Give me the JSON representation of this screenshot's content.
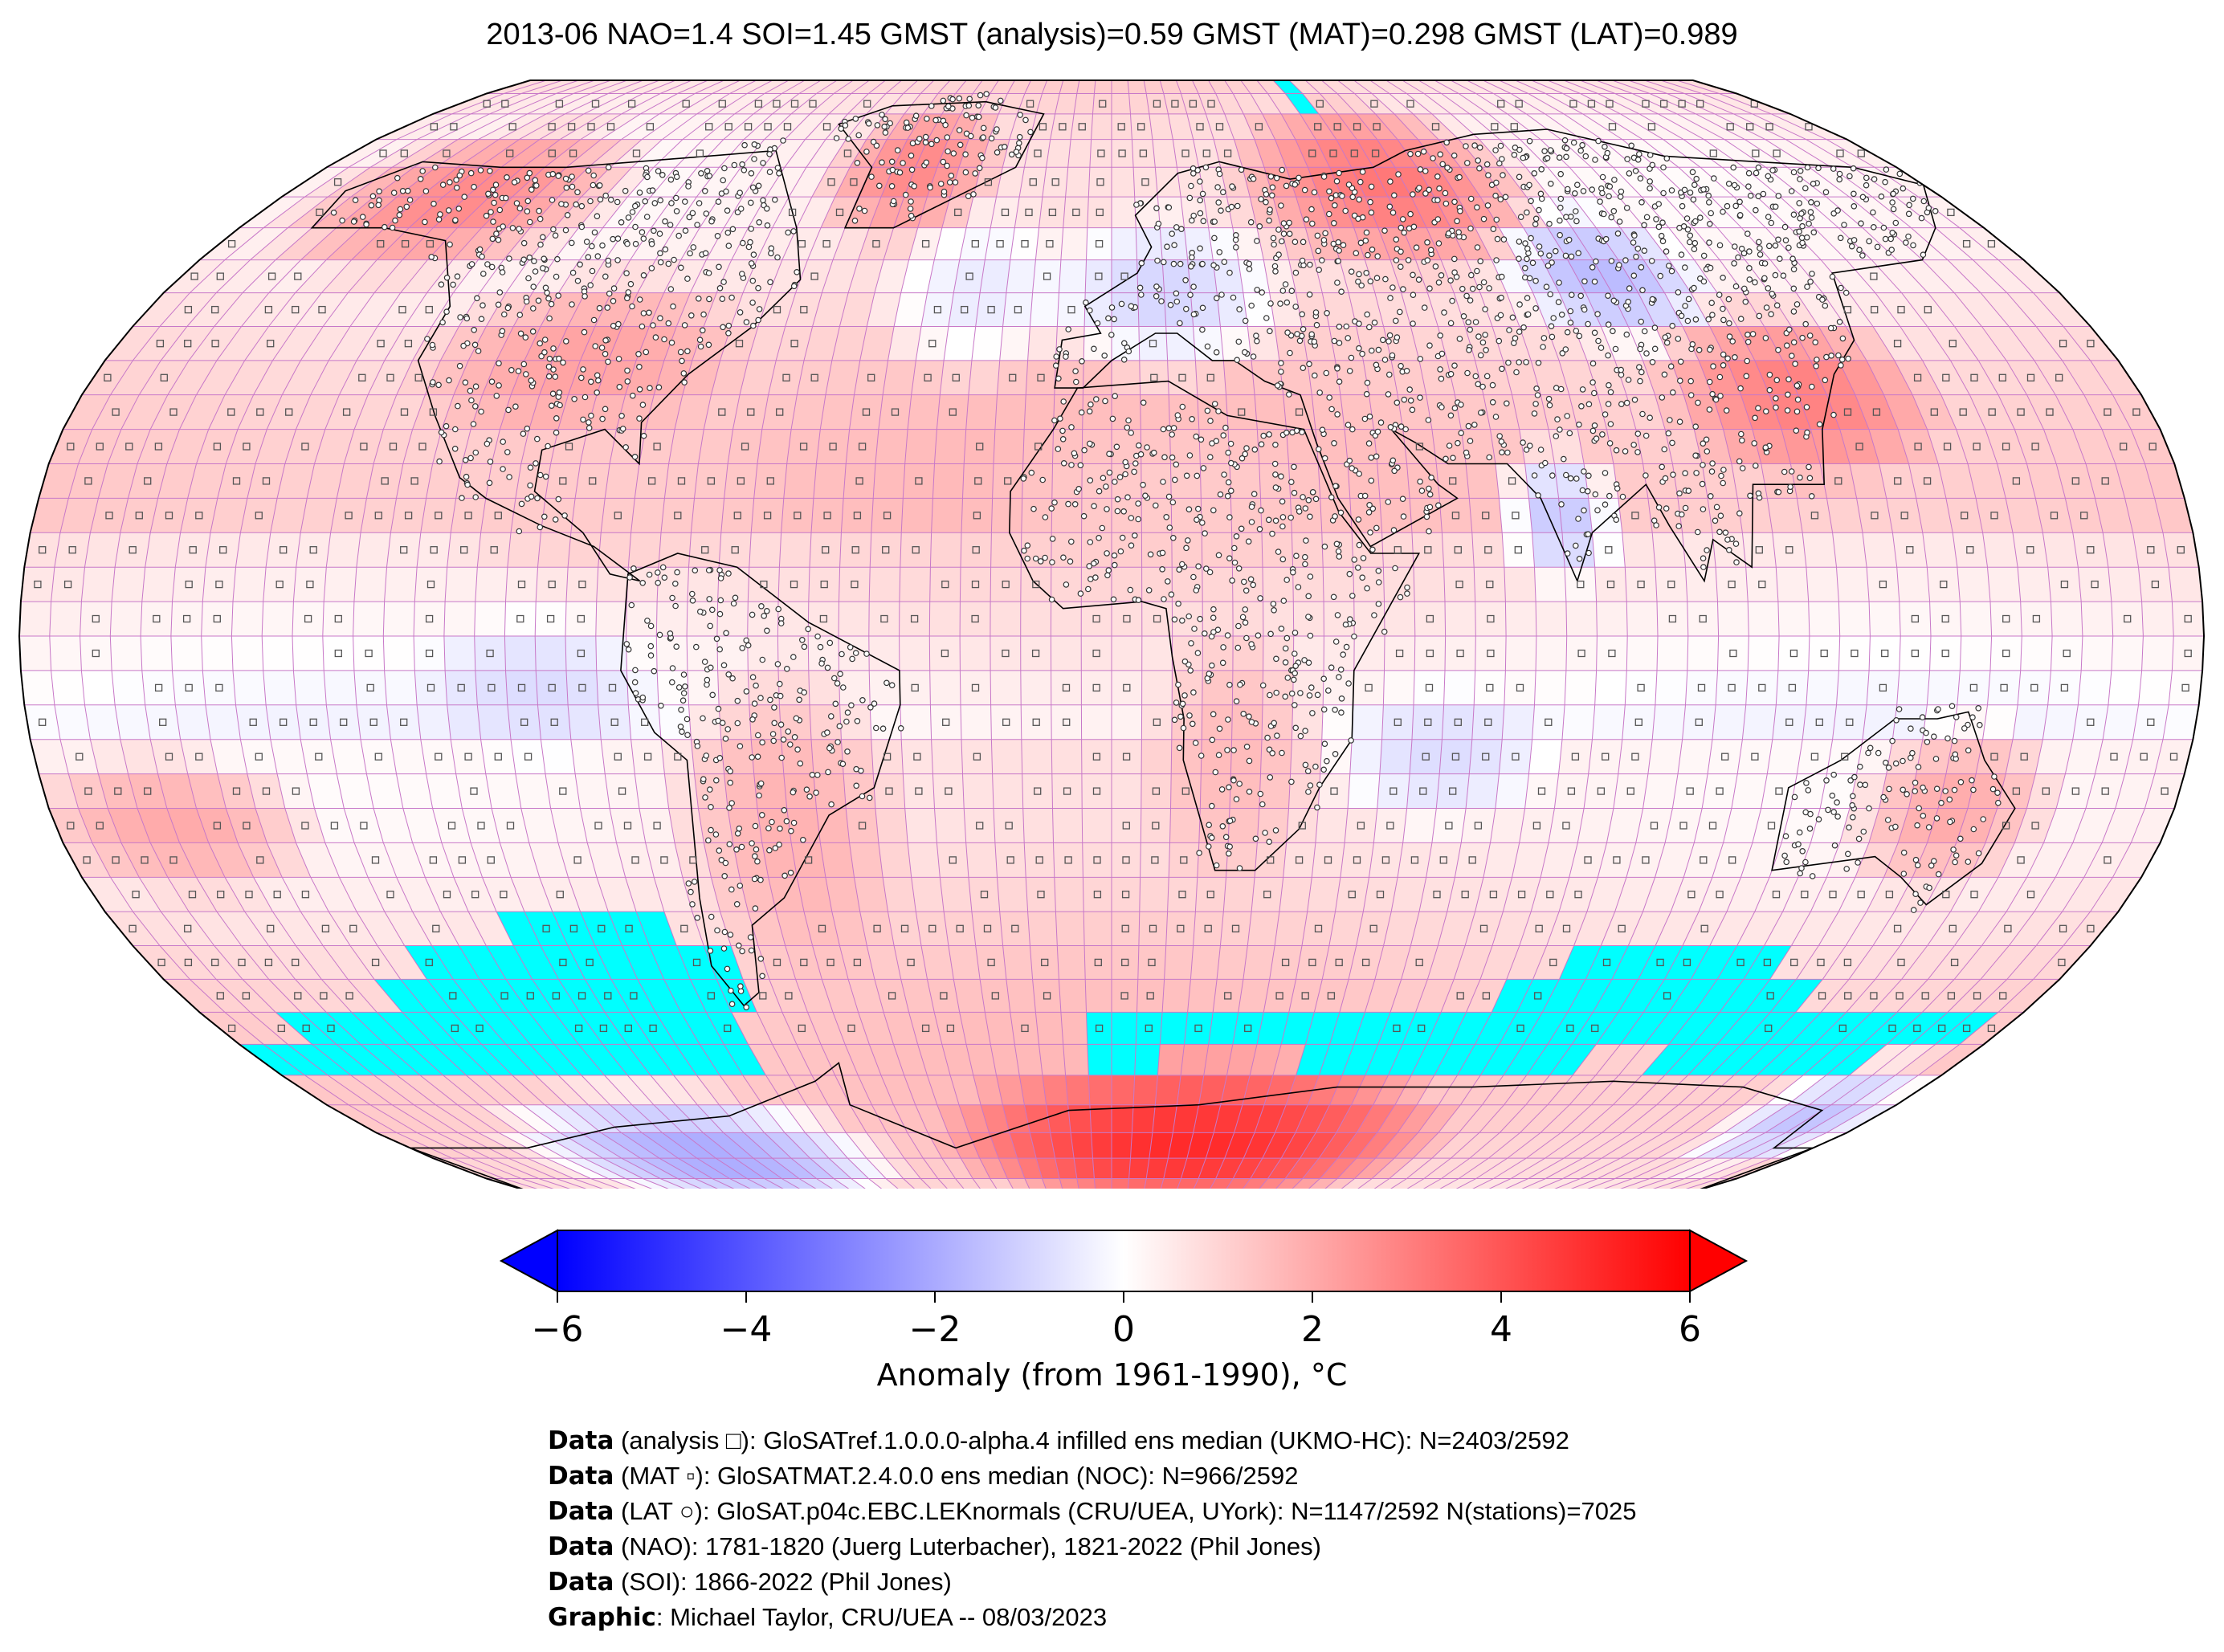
{
  "title": "2013-06 NAO=1.4 SOI=1.45 GMST (analysis)=0.59 GMST (MAT)=0.298 GMST (LAT)=0.989",
  "colors": {
    "cold": "#0000ff",
    "neutral": "#ffffff",
    "warm": "#ff0000",
    "missing": "#00ffff",
    "grid": "#c878c8",
    "coast": "#000000"
  },
  "colorbar": {
    "ticks": [
      "−6",
      "−4",
      "−2",
      "0",
      "2",
      "4",
      "6"
    ],
    "tick_values": [
      -6,
      -4,
      -2,
      0,
      2,
      4,
      6
    ],
    "range": [
      -6,
      6
    ],
    "label": "Anomaly (from 1961-1990), °C"
  },
  "credits": [
    {
      "bold": "Data",
      "text": " (analysis □): GloSATref.1.0.0.0-alpha.4 infilled ens median (UKMO-HC): N=2403/2592"
    },
    {
      "bold": "Data",
      "text": " (MAT ▫): GloSATMAT.2.4.0.0 ens median (NOC): N=966/2592"
    },
    {
      "bold": "Data",
      "text": " (LAT ○): GloSAT.p04c.EBC.LEKnormals (CRU/UEA, UYork): N=1147/2592 N(stations)=7025"
    },
    {
      "bold": "Data",
      "text": " (NAO): 1781-1820 (Juerg Luterbacher), 1821-2022 (Phil Jones)"
    },
    {
      "bold": "Data",
      "text": " (SOI): 1866-2022 (Phil Jones)"
    },
    {
      "bold": "Graphic",
      "text": ": Michael Taylor, CRU/UEA -- 08/03/2023"
    }
  ],
  "map": {
    "projection": "Robinson",
    "grid_step_deg": 5,
    "anomaly_regions": [
      {
        "lon": [
          -170,
          -110
        ],
        "lat": [
          55,
          75
        ],
        "value": 2.8
      },
      {
        "lon": [
          -120,
          -70
        ],
        "lat": [
          30,
          50
        ],
        "value": 2.2
      },
      {
        "lon": [
          -110,
          -60
        ],
        "lat": [
          10,
          30
        ],
        "value": 1.2
      },
      {
        "lon": [
          -60,
          -30
        ],
        "lat": [
          60,
          80
        ],
        "value": 2.8
      },
      {
        "lon": [
          -40,
          -10
        ],
        "lat": [
          40,
          60
        ],
        "value": -0.5
      },
      {
        "lon": [
          -10,
          30
        ],
        "lat": [
          40,
          60
        ],
        "value": -1.0
      },
      {
        "lon": [
          30,
          90
        ],
        "lat": [
          55,
          80
        ],
        "value": 3.2
      },
      {
        "lon": [
          80,
          110
        ],
        "lat": [
          45,
          60
        ],
        "value": -1.6
      },
      {
        "lon": [
          100,
          140
        ],
        "lat": [
          25,
          45
        ],
        "value": 3.0
      },
      {
        "lon": [
          70,
          80
        ],
        "lat": [
          10,
          25
        ],
        "value": -1.3
      },
      {
        "lon": [
          -20,
          40
        ],
        "lat": [
          10,
          30
        ],
        "value": 1.2
      },
      {
        "lon": [
          10,
          30
        ],
        "lat": [
          -35,
          0
        ],
        "value": 1.6
      },
      {
        "lon": [
          -70,
          -40
        ],
        "lat": [
          -50,
          -5
        ],
        "value": 1.8
      },
      {
        "lon": [
          -110,
          -80
        ],
        "lat": [
          -15,
          0
        ],
        "value": -0.8
      },
      {
        "lon": [
          40,
          70
        ],
        "lat": [
          -25,
          -10
        ],
        "value": -0.8
      },
      {
        "lon": [
          130,
          155
        ],
        "lat": [
          -35,
          -15
        ],
        "value": 2.0
      },
      {
        "lon": [
          -180,
          -140
        ],
        "lat": [
          -35,
          -20
        ],
        "value": 2.0
      },
      {
        "lon": [
          -40,
          80
        ],
        "lat": [
          -90,
          -65
        ],
        "value": 5.0
      },
      {
        "lon": [
          -150,
          -60
        ],
        "lat": [
          -90,
          -70
        ],
        "value": -2.0
      },
      {
        "lon": [
          150,
          180
        ],
        "lat": [
          -80,
          -65
        ],
        "value": -1.4
      }
    ],
    "missing_regions": [
      {
        "lon": [
          -110,
          -80
        ],
        "lat": [
          -45,
          -40
        ]
      },
      {
        "lon": [
          -130,
          -70
        ],
        "lat": [
          -50,
          -45
        ]
      },
      {
        "lon": [
          -140,
          -70
        ],
        "lat": [
          -55,
          -50
        ]
      },
      {
        "lon": [
          -165,
          -75
        ],
        "lat": [
          -60,
          -55
        ]
      },
      {
        "lon": [
          -180,
          -75
        ],
        "lat": [
          -65,
          -60
        ]
      },
      {
        "lon": [
          -5,
          175
        ],
        "lat": [
          -60,
          -55
        ]
      },
      {
        "lon": [
          -5,
          10
        ],
        "lat": [
          -65,
          -60
        ]
      },
      {
        "lon": [
          40,
          100
        ],
        "lat": [
          -65,
          -60
        ]
      },
      {
        "lon": [
          115,
          160
        ],
        "lat": [
          -65,
          -60
        ]
      },
      {
        "lon": [
          85,
          125
        ],
        "lat": [
          -50,
          -45
        ]
      },
      {
        "lon": [
          75,
          135
        ],
        "lat": [
          -55,
          -50
        ]
      },
      {
        "lon": [
          50,
          55
        ],
        "lat": [
          80,
          90
        ]
      }
    ]
  }
}
